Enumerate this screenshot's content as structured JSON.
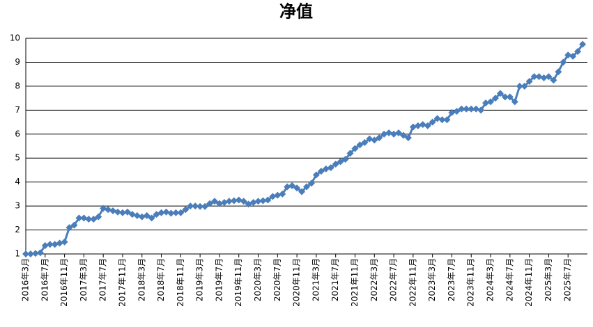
{
  "chart_data": {
    "type": "line",
    "title": "净值",
    "categories": [
      "2016年3月",
      null,
      null,
      null,
      "2016年7月",
      null,
      null,
      null,
      "2016年11月",
      null,
      null,
      null,
      "2017年3月",
      null,
      null,
      null,
      "2017年7月",
      null,
      null,
      null,
      "2017年11月",
      null,
      null,
      null,
      "2018年3月",
      null,
      null,
      null,
      "2018年7月",
      null,
      null,
      null,
      "2018年11月",
      null,
      null,
      null,
      "2019年3月",
      null,
      null,
      null,
      "2019年7月",
      null,
      null,
      null,
      "2019年11月",
      null,
      null,
      null,
      "2020年3月",
      null,
      null,
      null,
      "2020年7月",
      null,
      null,
      null,
      "2020年11月",
      null,
      null,
      null,
      "2021年3月",
      null,
      null,
      null,
      "2021年7月",
      null,
      null,
      null,
      "2021年11月",
      null,
      null,
      null,
      "2022年3月",
      null,
      null,
      null,
      "2022年7月",
      null,
      null,
      null,
      "2022年11月",
      null,
      null,
      null,
      "2023年3月",
      null,
      null,
      null,
      "2023年7月",
      null,
      null,
      null,
      "2023年11月",
      null,
      null,
      null,
      "2024年3月",
      null,
      null,
      null,
      "2024年7月",
      null,
      null,
      null,
      "2024年11月",
      null,
      null,
      null,
      "2025年3月",
      null,
      null,
      null,
      "2025年7月",
      null,
      null,
      null
    ],
    "values": [
      1.0,
      1.0,
      1.02,
      1.05,
      1.35,
      1.4,
      1.4,
      1.45,
      1.5,
      2.1,
      2.2,
      2.5,
      2.5,
      2.45,
      2.45,
      2.55,
      2.9,
      2.85,
      2.8,
      2.75,
      2.72,
      2.75,
      2.65,
      2.6,
      2.55,
      2.6,
      2.5,
      2.65,
      2.72,
      2.75,
      2.7,
      2.72,
      2.72,
      2.85,
      3.0,
      3.0,
      2.98,
      2.98,
      3.1,
      3.2,
      3.1,
      3.15,
      3.2,
      3.22,
      3.25,
      3.2,
      3.08,
      3.15,
      3.2,
      3.22,
      3.25,
      3.4,
      3.45,
      3.5,
      3.8,
      3.85,
      3.75,
      3.6,
      3.8,
      3.95,
      4.3,
      4.45,
      4.55,
      4.6,
      4.75,
      4.85,
      4.95,
      5.2,
      5.4,
      5.55,
      5.65,
      5.8,
      5.75,
      5.85,
      6.0,
      6.05,
      6.0,
      6.05,
      5.95,
      5.85,
      6.3,
      6.35,
      6.4,
      6.35,
      6.5,
      6.65,
      6.6,
      6.6,
      6.9,
      6.95,
      7.05,
      7.05,
      7.05,
      7.05,
      7.0,
      7.3,
      7.35,
      7.5,
      7.7,
      7.55,
      7.55,
      7.35,
      8.0,
      8.0,
      8.2,
      8.4,
      8.4,
      8.35,
      8.4,
      8.25,
      8.6,
      9.0,
      9.3,
      9.25,
      9.45,
      9.75
    ],
    "color": "#4a7ebb",
    "ylim": [
      1,
      10
    ],
    "yticks": [
      1,
      2,
      3,
      4,
      5,
      6,
      7,
      8,
      9,
      10
    ],
    "grid": true
  }
}
